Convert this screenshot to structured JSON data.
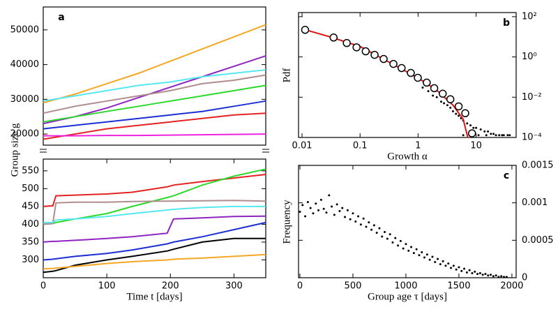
{
  "chart_data": [
    {
      "type": "line",
      "label": "a",
      "ylabel": "Group size g",
      "yaxis": "left",
      "xlim": [
        0,
        350
      ],
      "ylim": [
        16800,
        56600
      ],
      "yticks": [
        20000,
        30000,
        40000,
        50000
      ],
      "x": [
        0,
        50,
        100,
        150,
        200,
        250,
        300,
        350
      ],
      "series": [
        {
          "color": "#f5a623",
          "values": [
            29000,
            31500,
            34500,
            37500,
            41000,
            44500,
            48000,
            51500
          ]
        },
        {
          "color": "#8e24c2",
          "values": [
            23000,
            25000,
            27500,
            30500,
            33500,
            36500,
            39500,
            42500
          ]
        },
        {
          "color": "#55e8f0",
          "values": [
            29500,
            31000,
            32500,
            34000,
            35000,
            36500,
            37500,
            38500
          ]
        },
        {
          "color": "#b08c8c",
          "values": [
            26000,
            28000,
            29500,
            31000,
            32500,
            34500,
            35500,
            37000
          ]
        },
        {
          "color": "#2bd92b",
          "values": [
            23500,
            25000,
            26500,
            28000,
            29500,
            31000,
            32500,
            34000
          ]
        },
        {
          "color": "#1c2fd4",
          "values": [
            21500,
            22500,
            23500,
            24500,
            25500,
            26500,
            28000,
            29500
          ]
        },
        {
          "color": "#e32222",
          "values": [
            18500,
            20000,
            21500,
            22500,
            23500,
            24500,
            25500,
            26000
          ]
        },
        {
          "color": "#ee22dd",
          "values": [
            19500,
            19500,
            19600,
            19600,
            19700,
            19800,
            19900,
            20000
          ]
        }
      ]
    },
    {
      "type": "line",
      "xlabel": "Time t [days]",
      "yaxis": "left",
      "xlim": [
        0,
        350
      ],
      "xticks": [
        0,
        100,
        200,
        300
      ],
      "ylim": [
        250,
        583
      ],
      "yticks": [
        300,
        350,
        400,
        450,
        500,
        550
      ],
      "x": [
        0,
        15,
        20,
        50,
        100,
        140,
        195,
        205,
        250,
        300,
        350
      ],
      "series": [
        {
          "color": "#e32222",
          "values": [
            450,
            452,
            480,
            482,
            485,
            490,
            505,
            510,
            520,
            530,
            540
          ]
        },
        {
          "color": "#2bd92b",
          "values": [
            400,
            402,
            405,
            415,
            430,
            450,
            475,
            480,
            510,
            535,
            555
          ]
        },
        {
          "color": "#b08c8c",
          "values": [
            400,
            402,
            460,
            462,
            462,
            464,
            465,
            465,
            466,
            467,
            465
          ]
        },
        {
          "color": "#55e8f0",
          "values": [
            405,
            405,
            412,
            415,
            422,
            430,
            440,
            442,
            447,
            450,
            450
          ]
        },
        {
          "color": "#8e24c2",
          "values": [
            350,
            352,
            352,
            355,
            360,
            365,
            375,
            415,
            418,
            422,
            423
          ]
        },
        {
          "color": "#1c2fd4",
          "values": [
            300,
            302,
            303,
            310,
            318,
            328,
            345,
            350,
            365,
            385,
            405
          ]
        },
        {
          "color": "#000000",
          "values": [
            265,
            268,
            270,
            285,
            300,
            310,
            325,
            330,
            350,
            360,
            360
          ]
        },
        {
          "color": "#f5a623",
          "values": [
            275,
            276,
            277,
            282,
            290,
            295,
            300,
            302,
            305,
            310,
            315
          ]
        }
      ]
    },
    {
      "type": "scatter",
      "label": "b",
      "xlabel": "Growth α",
      "ylabel": "Pdf",
      "yaxis": "right",
      "xlog": true,
      "ylog": true,
      "xlim": [
        0.0087,
        49
      ],
      "ylim": [
        0.0001,
        160
      ],
      "xticks": [
        0.01,
        0.1,
        1,
        10
      ],
      "yticks": [
        {
          "value": 100,
          "label": "10²"
        },
        {
          "value": 1,
          "label": "10⁰"
        },
        {
          "value": 0.01,
          "label": "10⁻²"
        },
        {
          "value": 0.0001,
          "label": "10⁻⁴"
        }
      ],
      "series": [
        {
          "marker": "dot",
          "color": "#000000",
          "x": [
            1.2,
            1.5,
            1.8,
            2.1,
            2.5,
            2.8,
            3.2,
            3.6,
            4,
            4.5,
            5,
            5.5,
            6,
            7,
            8,
            9,
            10,
            12,
            14,
            16,
            18,
            20,
            25,
            30,
            35,
            6,
            8,
            11,
            15,
            22,
            28,
            38
          ],
          "values": [
            0.03,
            0.02,
            0.012,
            0.01,
            0.006,
            0.005,
            0.004,
            0.003,
            0.002,
            0.0015,
            0.0012,
            0.0009,
            0.0007,
            0.0005,
            0.0004,
            0.0003,
            0.0003,
            0.00025,
            0.0002,
            0.0002,
            0.00015,
            0.00015,
            0.00013,
            0.00013,
            0.00013,
            0.00013,
            0.00013,
            0.00013,
            0.00013,
            0.00013,
            0.00013,
            0.00013
          ]
        },
        {
          "marker": "line",
          "color": "#e01010",
          "x": [
            0.01,
            0.03,
            0.1,
            0.3,
            1,
            2,
            4,
            6,
            7.2
          ],
          "values": [
            25,
            10,
            3.3,
            0.6,
            0.09,
            0.025,
            0.004,
            0.0008,
            0.0001
          ]
        },
        {
          "marker": "circle",
          "color": "#000000",
          "x": [
            0.0113,
            0.035,
            0.059,
            0.087,
            0.125,
            0.178,
            0.255,
            0.376,
            0.52,
            0.75,
            0.99,
            1.41,
            1.9,
            2.66,
            3.6,
            5.0,
            6.5,
            8.5
          ],
          "values": [
            22.1,
            9.2,
            4.9,
            3.0,
            1.9,
            1.27,
            0.79,
            0.45,
            0.28,
            0.16,
            0.092,
            0.053,
            0.028,
            0.0149,
            0.0079,
            0.0035,
            0.0016,
            0.00016
          ]
        }
      ]
    },
    {
      "type": "scatter",
      "label": "c",
      "xlabel": "Group age τ  [days]",
      "ylabel": "Frequency",
      "yaxis": "right",
      "xlim": [
        -13,
        2040
      ],
      "ylim": [
        0,
        0.0015
      ],
      "xticks": [
        0,
        500,
        1000,
        1500,
        2000
      ],
      "yticks": [
        0,
        0.0005,
        0.001,
        0.0015
      ],
      "series": [
        {
          "marker": "dot",
          "color": "#000000",
          "x": [
            0,
            25,
            50,
            75,
            100,
            125,
            150,
            175,
            200,
            225,
            250,
            275,
            300,
            325,
            350,
            375,
            400,
            425,
            450,
            475,
            500,
            525,
            550,
            575,
            600,
            625,
            650,
            675,
            700,
            725,
            750,
            775,
            800,
            825,
            850,
            875,
            900,
            925,
            950,
            975,
            1000,
            1025,
            1050,
            1075,
            1100,
            1125,
            1150,
            1175,
            1200,
            1225,
            1250,
            1275,
            1300,
            1325,
            1350,
            1375,
            1400,
            1425,
            1450,
            1475,
            1500,
            1525,
            1550,
            1575,
            1600,
            1625,
            1650,
            1675,
            1700,
            1725,
            1750,
            1775,
            1800,
            1825,
            1850,
            1875,
            1900,
            1925,
            1950
          ],
          "values": [
            0.00088,
            0.00097,
            0.00082,
            0.00101,
            0.00093,
            0.00086,
            0.00099,
            0.0009,
            0.00104,
            0.00092,
            0.00087,
            0.0011,
            0.00095,
            0.00084,
            0.00098,
            0.00089,
            0.00093,
            0.00081,
            0.0009,
            0.00078,
            0.00086,
            0.00075,
            0.00082,
            0.00071,
            0.00079,
            0.00068,
            0.00074,
            0.00064,
            0.0007,
            0.0006,
            0.00066,
            0.00055,
            0.00061,
            0.00052,
            0.00058,
            0.00047,
            0.00053,
            0.00043,
            0.00049,
            0.00039,
            0.00045,
            0.00036,
            0.00041,
            0.00033,
            0.00038,
            0.0003,
            0.00034,
            0.00027,
            0.00031,
            0.00024,
            0.00028,
            0.00021,
            0.00025,
            0.00018,
            0.00022,
            0.00016,
            0.00019,
            0.00013,
            0.00016,
            0.00011,
            0.00014,
            9e-05,
            0.00012,
            7e-05,
            0.0001,
            6e-05,
            8e-05,
            5e-05,
            6e-05,
            4e-05,
            5e-05,
            3e-05,
            4e-05,
            2e-05,
            3e-05,
            1e-05,
            2e-05,
            1e-05,
            1e-05
          ]
        }
      ]
    }
  ]
}
